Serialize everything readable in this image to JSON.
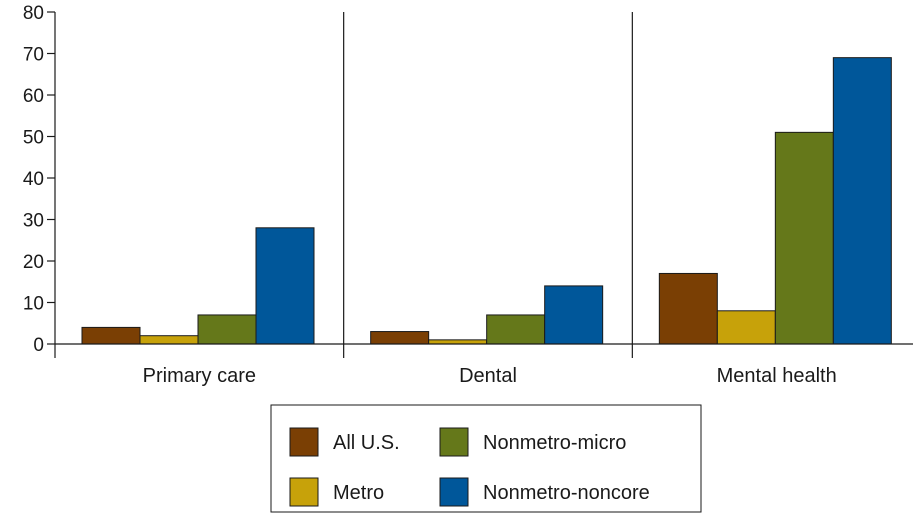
{
  "chart_data": {
    "type": "bar",
    "categories": [
      "Primary care",
      "Dental",
      "Mental health"
    ],
    "series": [
      {
        "name": "All U.S.",
        "values": [
          4,
          3,
          17
        ],
        "color": "#7a3f04"
      },
      {
        "name": "Metro",
        "values": [
          2,
          1,
          8
        ],
        "color": "#c7a20a"
      },
      {
        "name": "Nonmetro-micro",
        "values": [
          7,
          7,
          51
        ],
        "color": "#65781a"
      },
      {
        "name": "Nonmetro-noncore",
        "values": [
          28,
          14,
          69
        ],
        "color": "#00579a"
      }
    ],
    "yticks": [
      0,
      10,
      20,
      30,
      40,
      50,
      60,
      70,
      80
    ],
    "ylim": [
      0,
      80
    ],
    "xlabel": "",
    "ylabel": "",
    "grid": false,
    "legend_position": "bottom-center"
  }
}
